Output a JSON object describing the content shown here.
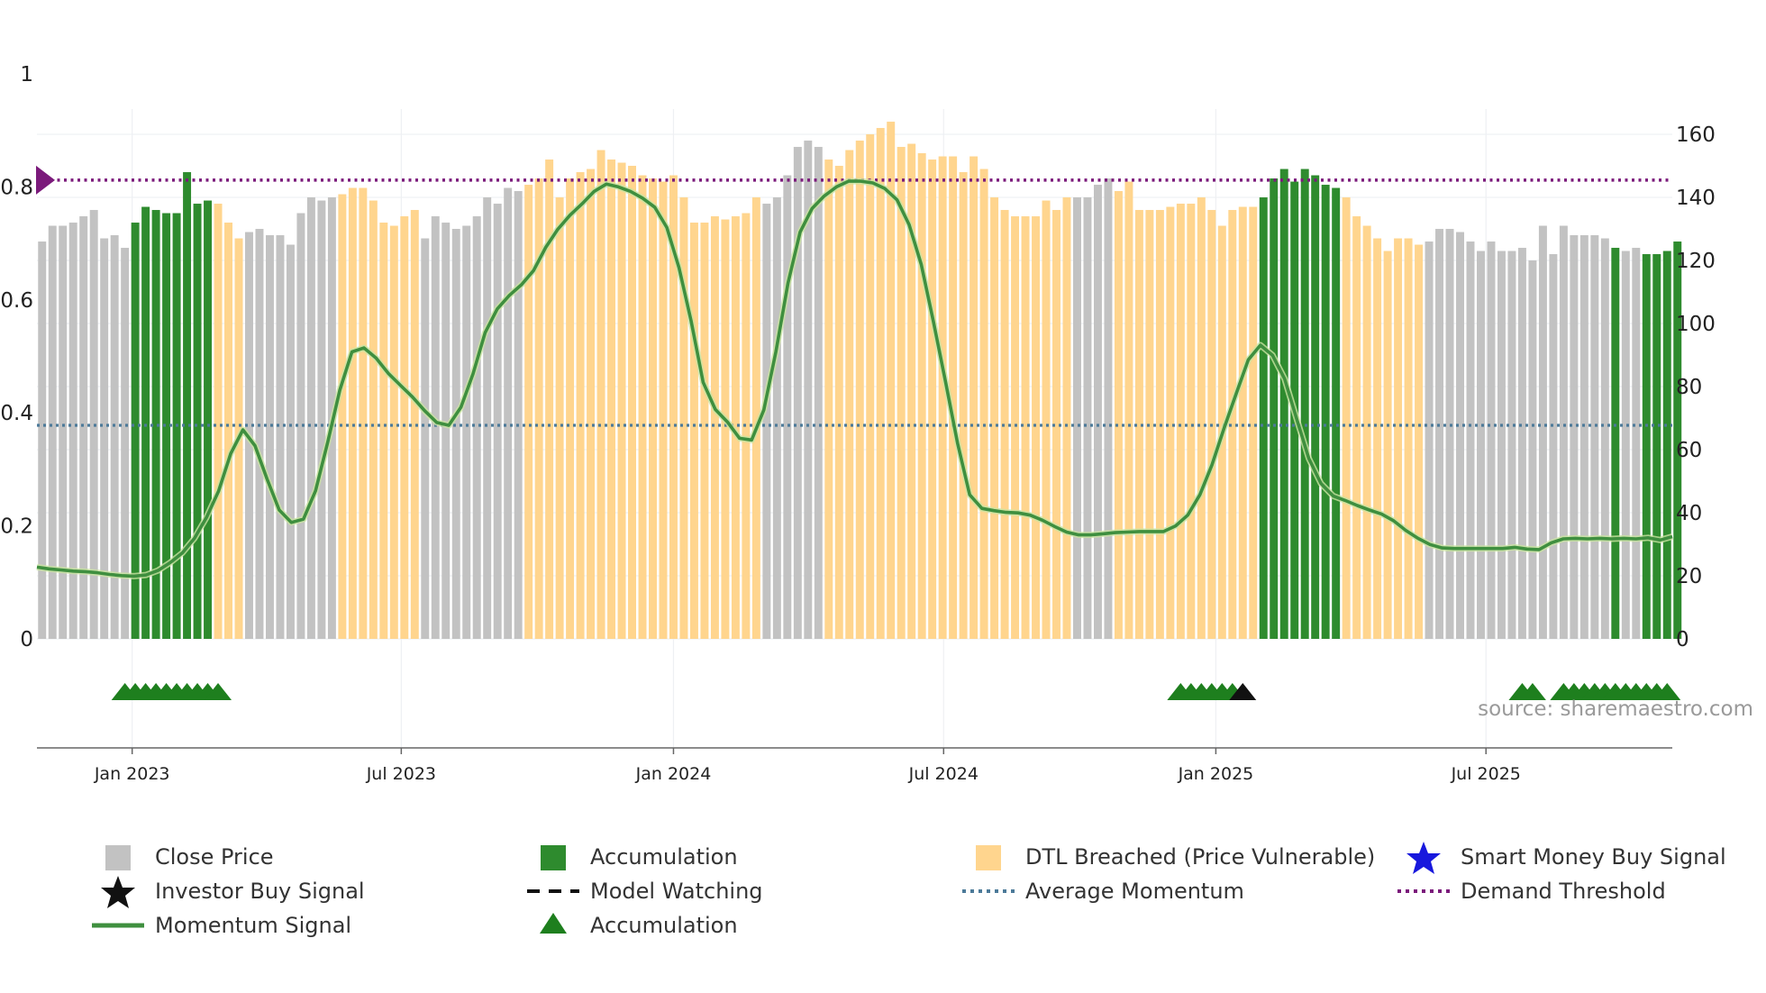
{
  "chart_data": {
    "type": "bar",
    "weeks": 158,
    "x_tick_labels": [
      {
        "label": "Jan 2023",
        "week": 9.2
      },
      {
        "label": "Jul 2023",
        "week": 35.2
      },
      {
        "label": "Jan 2024",
        "week": 61.5
      },
      {
        "label": "Jul 2024",
        "week": 87.6
      },
      {
        "label": "Jan 2025",
        "week": 113.9
      },
      {
        "label": "Jul 2025",
        "week": 140.0
      }
    ],
    "left_axis": {
      "ylim": [
        0,
        1
      ],
      "ticks": [
        "0",
        "0.2",
        "0.4",
        "0.6",
        "0.8",
        "1"
      ],
      "tick_values": [
        0,
        0.2,
        0.4,
        0.6,
        0.8,
        1.0
      ]
    },
    "right_axis": {
      "ylim": [
        0,
        170.5
      ],
      "ticks": [
        "0",
        "20",
        "40",
        "60",
        "80",
        "100",
        "120",
        "140",
        "160"
      ],
      "tick_values": [
        0,
        20,
        40,
        60,
        80,
        100,
        120,
        140,
        160
      ]
    },
    "close_price": [
      126,
      131,
      131,
      132,
      134,
      136,
      127,
      128,
      124,
      132,
      137,
      136,
      135,
      135,
      148,
      138,
      139,
      138,
      132,
      127,
      129,
      130,
      128,
      128,
      125,
      135,
      140,
      139,
      140,
      141,
      143,
      143,
      139,
      132,
      131,
      134,
      136,
      127,
      134,
      132,
      130,
      131,
      134,
      140,
      138,
      143,
      142,
      144,
      146,
      152,
      140,
      146,
      148,
      149,
      155,
      152,
      151,
      150,
      147,
      146,
      145,
      147,
      140,
      132,
      132,
      134,
      133,
      134,
      135,
      140,
      138,
      140,
      147,
      156,
      158,
      156,
      152,
      150,
      155,
      158,
      160,
      162,
      164,
      156,
      157,
      154,
      152,
      153,
      153,
      148,
      153,
      149,
      140,
      136,
      134,
      134,
      134,
      139,
      136,
      140,
      140,
      140,
      144,
      146,
      142,
      145,
      136,
      136,
      136,
      137,
      138,
      138,
      140,
      136,
      131,
      136,
      137,
      137,
      140,
      146,
      149,
      145,
      149,
      147,
      144,
      143,
      140,
      134,
      131,
      127,
      123,
      127,
      127,
      125,
      126,
      130,
      130,
      129,
      126,
      123,
      126,
      123,
      123,
      124,
      120,
      131,
      122,
      131,
      128,
      128,
      128,
      127,
      124,
      123,
      124,
      122,
      122,
      123,
      126
    ],
    "bar_category": "gggggggggaaaaaaaadddgggggggggddddddddggggggggggdddddddddddddddddddddddggggggddddddddddddddddddddddddggggddddddddddddddaaaaaaaaddddddddggggggggggggggggggaggaaaaagaagaa",
    "momentum": [
      0.127,
      0.124,
      0.122,
      0.12,
      0.119,
      0.117,
      0.114,
      0.112,
      0.111,
      0.113,
      0.121,
      0.135,
      0.152,
      0.178,
      0.215,
      0.262,
      0.328,
      0.37,
      0.342,
      0.283,
      0.228,
      0.206,
      0.212,
      0.262,
      0.348,
      0.44,
      0.508,
      0.515,
      0.497,
      0.47,
      0.449,
      0.428,
      0.404,
      0.383,
      0.378,
      0.41,
      0.469,
      0.542,
      0.584,
      0.608,
      0.627,
      0.652,
      0.693,
      0.725,
      0.75,
      0.77,
      0.792,
      0.805,
      0.8,
      0.792,
      0.78,
      0.764,
      0.728,
      0.657,
      0.563,
      0.454,
      0.406,
      0.384,
      0.355,
      0.352,
      0.405,
      0.508,
      0.63,
      0.72,
      0.762,
      0.784,
      0.8,
      0.81,
      0.81,
      0.807,
      0.797,
      0.777,
      0.733,
      0.663,
      0.562,
      0.456,
      0.346,
      0.255,
      0.231,
      0.227,
      0.224,
      0.223,
      0.219,
      0.21,
      0.199,
      0.189,
      0.184,
      0.184,
      0.186,
      0.188,
      0.189,
      0.19,
      0.19,
      0.19,
      0.2,
      0.219,
      0.255,
      0.308,
      0.373,
      0.434,
      0.494,
      0.52,
      0.502,
      0.46,
      0.389,
      0.319,
      0.275,
      0.253,
      0.245,
      0.236,
      0.228,
      0.221,
      0.209,
      0.192,
      0.178,
      0.167,
      0.161,
      0.16,
      0.16,
      0.16,
      0.16,
      0.16,
      0.162,
      0.159,
      0.158,
      0.17,
      0.177,
      0.178,
      0.177,
      0.178,
      0.177,
      0.178,
      0.177,
      0.179,
      0.175,
      0.181
    ],
    "average_momentum": 0.378,
    "demand_threshold": 0.812,
    "accumulation_markers_weeks": [
      8,
      9,
      10,
      11,
      12,
      13,
      14,
      15,
      16,
      17,
      110,
      111,
      112,
      113,
      114,
      115,
      143,
      144,
      147,
      148,
      149,
      150,
      151,
      152,
      153,
      154,
      155,
      156,
      157
    ],
    "investor_buy_signal_weeks": [
      116
    ],
    "series": [
      {
        "name": "Close Price"
      },
      {
        "name": "Accumulation"
      },
      {
        "name": "DTL Breached (Price Vulnerable)"
      },
      {
        "name": "Smart Money Buy Signal"
      },
      {
        "name": "Investor Buy Signal"
      },
      {
        "name": "Model Watching"
      },
      {
        "name": "Average Momentum"
      },
      {
        "name": "Demand Threshold"
      },
      {
        "name": "Momentum Signal"
      }
    ]
  },
  "colors": {
    "close_price": "#c2c2c2",
    "accumulation": "#2e8b2e",
    "dtl_breached": "#ffd58e",
    "momentum": "#3f8f3f",
    "average_momentum": "#4c7a99",
    "demand_threshold": "#7b1a7b",
    "smart_money": "#1818dd",
    "investor": "#111111",
    "marker_green": "#1e7f1e"
  },
  "legend": {
    "close_price": "Close Price",
    "accumulation": "Accumulation",
    "dtl_breached": "DTL Breached (Price Vulnerable)",
    "smart_money": "Smart Money Buy Signal",
    "investor_buy": "Investor Buy Signal",
    "model_watching": "Model Watching",
    "average_momentum": "Average Momentum",
    "demand_threshold": "Demand Threshold",
    "momentum_signal": "Momentum Signal",
    "accumulation_marker": "Accumulation"
  },
  "source": "source: sharemaestro.com"
}
